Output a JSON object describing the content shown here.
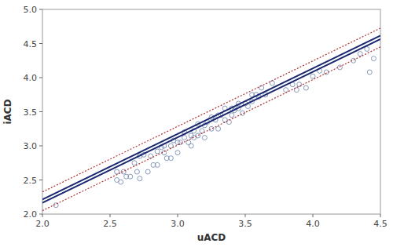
{
  "chart_data": {
    "type": "scatter",
    "xlabel": "uACD",
    "ylabel": "iACD",
    "xlim": [
      2.0,
      4.5
    ],
    "ylim": [
      2.0,
      5.0
    ],
    "xticks": [
      {
        "value": 2.0,
        "label": "2.0"
      },
      {
        "value": 2.5,
        "label": "2.5"
      },
      {
        "value": 3.0,
        "label": "3.0"
      },
      {
        "value": 3.5,
        "label": "3.5"
      },
      {
        "value": 4.0,
        "label": "4.0"
      },
      {
        "value": 4.5,
        "label": "4.5"
      }
    ],
    "yticks": [
      {
        "value": 2.0,
        "label": "2.0"
      },
      {
        "value": 2.5,
        "label": "2.5"
      },
      {
        "value": 3.0,
        "label": "3.0"
      },
      {
        "value": 3.5,
        "label": "3.5"
      },
      {
        "value": 4.0,
        "label": "4.0"
      },
      {
        "value": 4.5,
        "label": "4.5"
      },
      {
        "value": 5.0,
        "label": "5.0"
      }
    ],
    "grid": false,
    "series": [
      {
        "type": "scatter",
        "marker": "circle",
        "color": "#8899bb",
        "x": [
          2.1,
          2.55,
          2.55,
          2.58,
          2.6,
          2.62,
          2.65,
          2.68,
          2.7,
          2.72,
          2.72,
          2.75,
          2.78,
          2.8,
          2.82,
          2.85,
          2.85,
          2.88,
          2.9,
          2.9,
          2.92,
          2.95,
          2.95,
          2.97,
          3.0,
          3.0,
          3.02,
          3.05,
          3.05,
          3.08,
          3.1,
          3.1,
          3.12,
          3.12,
          3.15,
          3.15,
          3.18,
          3.2,
          3.2,
          3.22,
          3.25,
          3.25,
          3.28,
          3.3,
          3.3,
          3.32,
          3.35,
          3.35,
          3.38,
          3.4,
          3.4,
          3.42,
          3.45,
          3.45,
          3.48,
          3.5,
          3.52,
          3.55,
          3.55,
          3.58,
          3.6,
          3.62,
          3.65,
          3.7,
          3.8,
          3.85,
          3.88,
          3.9,
          3.95,
          4.0,
          4.05,
          4.1,
          4.2,
          4.3,
          4.35,
          4.4,
          4.42,
          4.45
        ],
        "values": [
          2.13,
          2.5,
          2.62,
          2.47,
          2.62,
          2.55,
          2.55,
          2.75,
          2.62,
          2.52,
          2.85,
          2.87,
          2.62,
          2.85,
          2.72,
          2.72,
          2.92,
          2.98,
          2.9,
          3.0,
          2.82,
          2.82,
          3.0,
          3.08,
          2.9,
          3.05,
          3.05,
          3.12,
          3.2,
          3.05,
          3.0,
          3.15,
          3.12,
          3.22,
          3.15,
          3.32,
          3.22,
          3.12,
          3.3,
          3.35,
          3.25,
          3.42,
          3.38,
          3.25,
          3.45,
          3.45,
          3.38,
          3.55,
          3.35,
          3.45,
          3.55,
          3.52,
          3.55,
          3.62,
          3.48,
          3.62,
          3.58,
          3.65,
          3.75,
          3.75,
          3.72,
          3.85,
          3.75,
          3.92,
          3.82,
          3.9,
          3.82,
          3.9,
          3.85,
          4.02,
          4.1,
          4.08,
          4.15,
          4.25,
          4.35,
          4.42,
          4.08,
          4.28
        ]
      },
      {
        "type": "line",
        "line_style": "dotted",
        "color": "#b03030",
        "x": [
          2.0,
          4.5
        ],
        "values": [
          2.325,
          4.725
        ]
      },
      {
        "type": "line",
        "line_style": "dotted",
        "color": "#b03030",
        "x": [
          2.0,
          4.5
        ],
        "values": [
          2.05,
          4.45
        ]
      },
      {
        "type": "line",
        "line_style": "solid",
        "color": "#1a2870",
        "x": [
          2.0,
          4.5
        ],
        "values": [
          2.215,
          4.615
        ]
      },
      {
        "type": "line",
        "line_style": "solid",
        "color": "#1a2870",
        "x": [
          2.0,
          4.5
        ],
        "values": [
          2.165,
          4.565
        ]
      }
    ]
  }
}
